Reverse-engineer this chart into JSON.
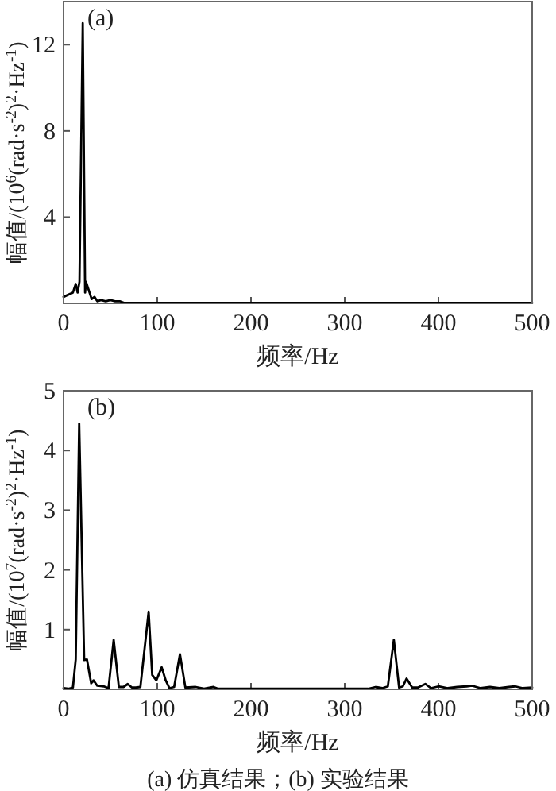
{
  "chart_data": [
    {
      "type": "line",
      "xlabel": "频率/Hz",
      "ylabel": "幅值/(10$^{6}$(rad·s$^{-2}$)$^{2}$·Hz$^{-1}$)",
      "annotations": [
        "(a)"
      ],
      "xlim": [
        0,
        500
      ],
      "ylim": [
        0,
        14
      ],
      "xticks": [
        0,
        100,
        200,
        300,
        400,
        500
      ],
      "yticks": [
        4,
        8,
        12
      ],
      "series": [
        {
          "color": "#000000",
          "x": [
            0,
            5,
            10,
            13,
            15,
            17,
            20.5,
            23,
            24,
            30,
            33,
            36,
            40,
            45,
            50,
            55,
            60,
            65,
            100,
            200,
            300,
            400,
            500
          ],
          "values": [
            0.3,
            0.4,
            0.5,
            0.9,
            0.5,
            1.0,
            13,
            0.5,
            1.0,
            0.2,
            0.3,
            0.1,
            0.15,
            0.1,
            0.15,
            0.1,
            0.1,
            0.02,
            0.02,
            0.02,
            0.02,
            0.02,
            0.02
          ]
        }
      ]
    },
    {
      "type": "line",
      "xlabel": "频率/Hz",
      "ylabel": "幅值/(10$^{7}$(rad·s$^{-2}$)$^{2}$·Hz$^{-1}$)",
      "annotations": [
        "(b)",
        "(a) 仿真结果；(b) 实验结果"
      ],
      "xlim": [
        0,
        500
      ],
      "ylim": [
        0,
        5
      ],
      "xticks": [
        0,
        100,
        200,
        300,
        400,
        500
      ],
      "yticks": [
        1,
        2,
        3,
        4,
        5
      ],
      "series": [
        {
          "color": "#000000",
          "x": [
            0,
            5,
            10,
            13,
            16.7,
            22,
            25,
            29.5,
            32,
            36,
            43,
            48,
            53.5,
            59,
            64,
            68.5,
            73,
            77,
            82,
            90.8,
            94.6,
            99,
            104.7,
            109,
            113,
            118,
            124.2,
            130,
            141,
            150,
            160,
            165,
            200,
            250,
            300,
            325,
            333,
            340,
            346,
            352.4,
            358,
            362,
            366,
            372,
            378,
            386,
            392,
            400,
            410,
            420,
            430,
            436,
            445,
            455,
            465,
            475,
            482,
            490,
            500
          ],
          "values": [
            0.02,
            0.01,
            0.03,
            0.5,
            4.45,
            0.49,
            0.5,
            0.1,
            0.15,
            0.06,
            0.05,
            0.02,
            0.83,
            0.04,
            0.04,
            0.09,
            0.03,
            0.03,
            0.04,
            1.3,
            0.24,
            0.15,
            0.37,
            0.15,
            0.02,
            0.04,
            0.59,
            0.03,
            0.04,
            0.01,
            0.04,
            0.01,
            0.01,
            0.01,
            0.01,
            0.01,
            0.04,
            0.02,
            0.05,
            0.83,
            0.03,
            0.05,
            0.18,
            0.03,
            0.03,
            0.09,
            0.02,
            0.05,
            0.02,
            0.04,
            0.05,
            0.06,
            0.02,
            0.04,
            0.02,
            0.04,
            0.05,
            0.02,
            0.03
          ]
        }
      ]
    }
  ]
}
